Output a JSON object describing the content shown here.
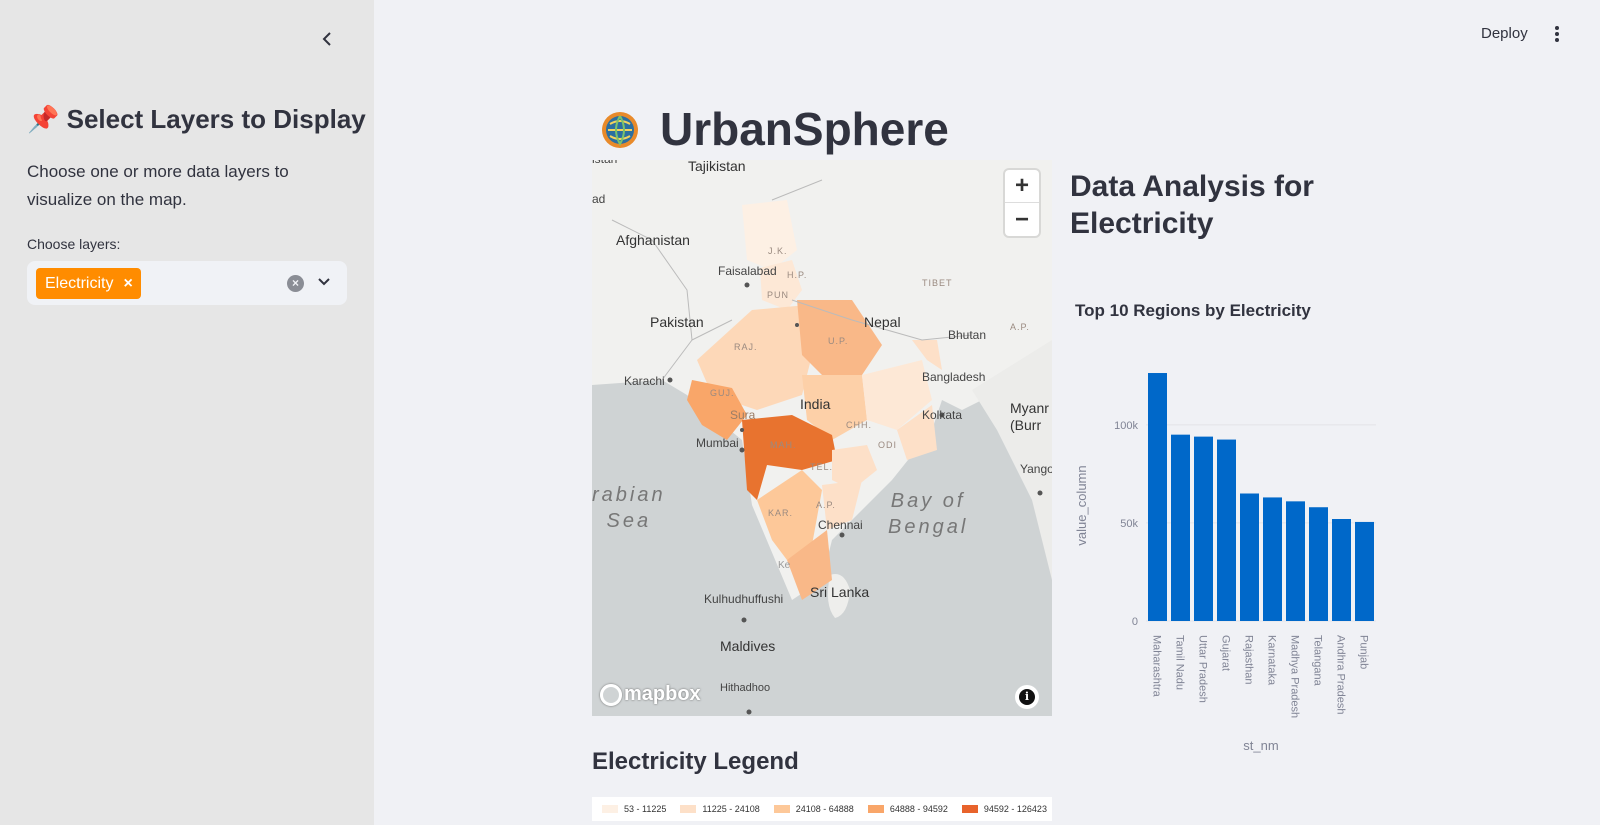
{
  "sidebar": {
    "title": "📌 Select Layers to Display",
    "description": "Choose one or more data layers to visualize on the map.",
    "field_label": "Choose layers:",
    "selected": [
      "Electricity"
    ],
    "chip_remove": "×"
  },
  "header": {
    "deploy_label": "Deploy"
  },
  "app": {
    "title": "UrbanSphere"
  },
  "map": {
    "labels": {
      "tajikistan": "Tajikistan",
      "istan": "istan",
      "ad": "ad",
      "afghanistan": "Afghanistan",
      "faisalabad": "Faisalabad",
      "tibet": "TIBET",
      "pakistan": "Pakistan",
      "nepal": "Nepal",
      "bhutan": "Bhutan",
      "ap": "A.P.",
      "karachi": "Karachi",
      "bangladesh": "Bangladesh",
      "india": "India",
      "kolkata": "Kolkata",
      "myanmar": "Myanr\n(Burr",
      "mumbai": "Mumbai",
      "yangon": "Yango",
      "arabian_sea": "rabian\nSea",
      "bay_of_bengal": "Bay of\nBengal",
      "chennai": "Chennai",
      "kulhudhuffushi": "Kulhudhuffushi",
      "sri_lanka": "Sri Lanka",
      "maldives": "Maldives",
      "hithadhoo": "Hithadhoo",
      "surat": "Sura",
      "ke": "Ke",
      "jk": "J.K.",
      "hp": "H.P.",
      "pun": "PUN",
      "up": "U.P.",
      "raj": "RAJ.",
      "guj": "GUJ.",
      "mah": "MAH.",
      "chh": "CHH.",
      "odi": "ODI",
      "tel": "TEL.",
      "kar": "KAR.",
      "ap_state": "A.P."
    },
    "zoom_in": "+",
    "zoom_out": "−",
    "attribution_logo": "mapbox"
  },
  "legend": {
    "title": "Electricity Legend",
    "items": [
      {
        "label": "53 - 11225",
        "color": "#fdf0e4"
      },
      {
        "label": "11225 - 24108",
        "color": "#fde0c8"
      },
      {
        "label": "24108 - 64888",
        "color": "#fdc899"
      },
      {
        "label": "64888 - 94592",
        "color": "#f9a669"
      },
      {
        "label": "94592 - 126423",
        "color": "#e8632b"
      }
    ]
  },
  "analysis": {
    "title": "Data Analysis for Electricity"
  },
  "chart_data": {
    "type": "bar",
    "title": "Top 10 Regions by Electricity",
    "xlabel": "st_nm",
    "ylabel": "value_column",
    "categories": [
      "Maharashtra",
      "Tamil Nadu",
      "Uttar Pradesh",
      "Gujarat",
      "Rajasthan",
      "Karnataka",
      "Madhya Pradesh",
      "Telangana",
      "Andhra Pradesh",
      "Punjab"
    ],
    "values": [
      126423,
      95000,
      94000,
      92500,
      65000,
      63000,
      61000,
      58000,
      52000,
      50500
    ],
    "yticks": [
      0,
      50000,
      100000
    ],
    "ytick_labels": [
      "0",
      "50k",
      "100k"
    ],
    "ylim": [
      0,
      130000
    ],
    "color": "#0068c9",
    "grid": true
  }
}
